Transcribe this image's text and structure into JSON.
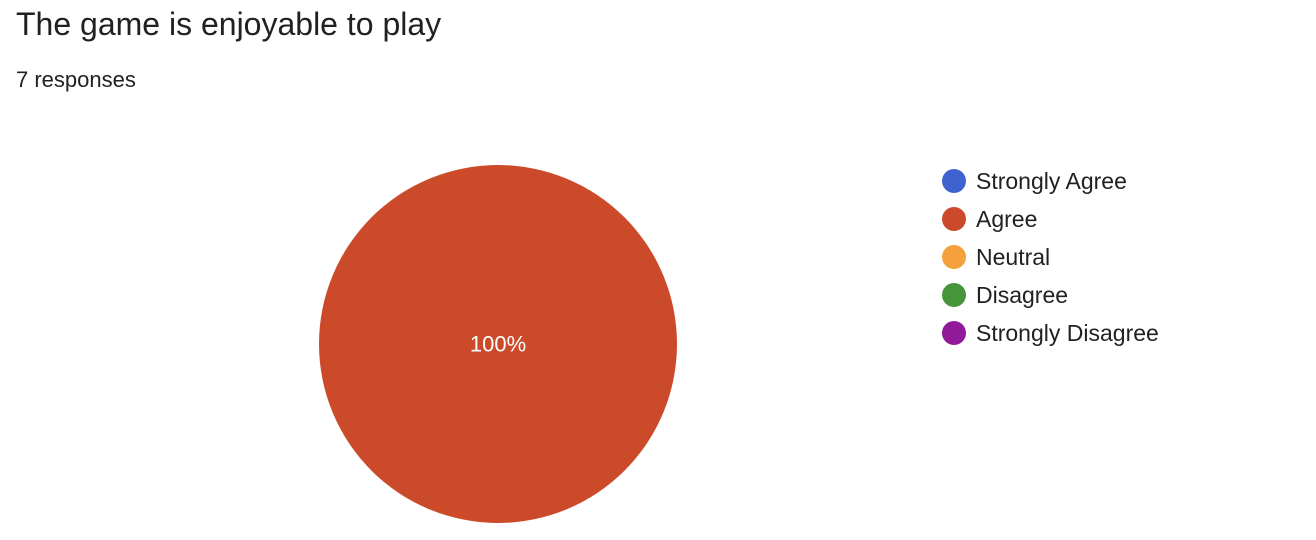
{
  "question": {
    "title": "The game is enjoyable to play",
    "responses": "7 responses"
  },
  "chart_data": {
    "type": "pie",
    "categories": [
      "Strongly Agree",
      "Agree",
      "Neutral",
      "Disagree",
      "Strongly Disagree"
    ],
    "values": [
      0,
      100,
      0,
      0,
      0
    ],
    "unit": "%",
    "colors": [
      "#3f63ce",
      "#cb4a2a",
      "#f4a03c",
      "#46953b",
      "#901a9a"
    ],
    "data_labels": [
      "",
      "100%",
      "",
      "",
      ""
    ],
    "legend_position": "right"
  }
}
